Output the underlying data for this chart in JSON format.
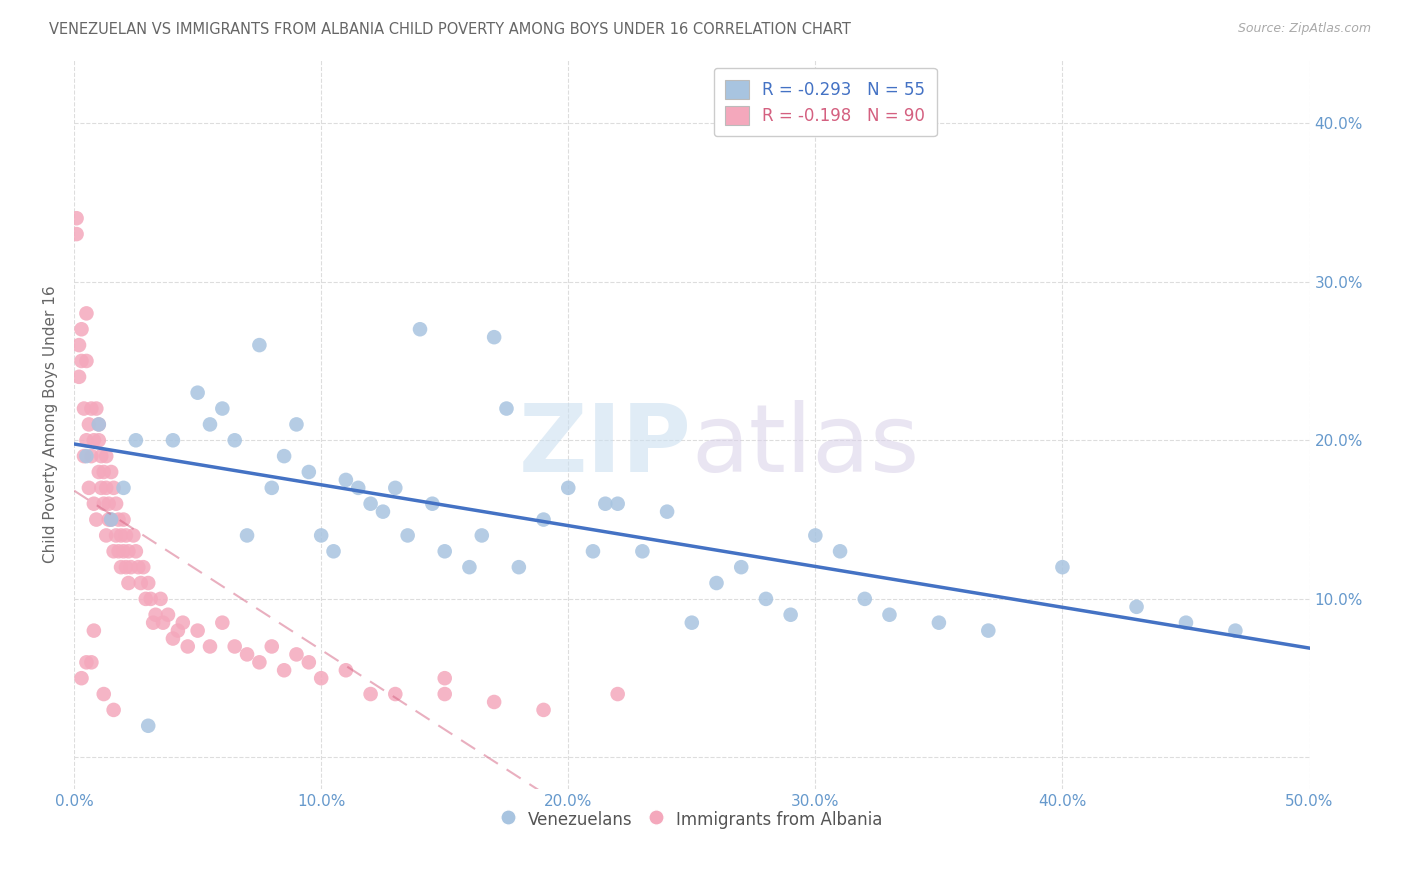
{
  "title": "VENEZUELAN VS IMMIGRANTS FROM ALBANIA CHILD POVERTY AMONG BOYS UNDER 16 CORRELATION CHART",
  "source": "Source: ZipAtlas.com",
  "ylabel": "Child Poverty Among Boys Under 16",
  "xlim": [
    0,
    0.5
  ],
  "ylim": [
    -0.02,
    0.44
  ],
  "xticks": [
    0.0,
    0.1,
    0.2,
    0.3,
    0.4,
    0.5
  ],
  "xticklabels": [
    "0.0%",
    "10.0%",
    "20.0%",
    "30.0%",
    "40.0%",
    "50.0%"
  ],
  "yticks": [
    0.0,
    0.1,
    0.2,
    0.3,
    0.4
  ],
  "yticklabels_left": [
    "",
    "",
    "",
    "",
    ""
  ],
  "yticklabels_right": [
    "",
    "10.0%",
    "20.0%",
    "30.0%",
    "40.0%"
  ],
  "legend_blue_r": "R = -0.293",
  "legend_blue_n": "N = 55",
  "legend_pink_r": "R = -0.198",
  "legend_pink_n": "N = 90",
  "series_blue": {
    "label": "Venezuelans",
    "color": "#a8c4e0",
    "line_color": "#4472c4",
    "x": [
      0.005,
      0.01,
      0.015,
      0.02,
      0.025,
      0.03,
      0.04,
      0.05,
      0.055,
      0.06,
      0.065,
      0.07,
      0.075,
      0.08,
      0.085,
      0.09,
      0.095,
      0.1,
      0.105,
      0.11,
      0.115,
      0.12,
      0.125,
      0.13,
      0.135,
      0.14,
      0.145,
      0.15,
      0.16,
      0.165,
      0.17,
      0.175,
      0.18,
      0.19,
      0.2,
      0.21,
      0.215,
      0.22,
      0.23,
      0.24,
      0.25,
      0.26,
      0.27,
      0.28,
      0.29,
      0.3,
      0.31,
      0.32,
      0.33,
      0.35,
      0.37,
      0.4,
      0.43,
      0.45,
      0.47
    ],
    "y": [
      0.19,
      0.21,
      0.15,
      0.17,
      0.2,
      0.02,
      0.2,
      0.23,
      0.21,
      0.22,
      0.2,
      0.14,
      0.26,
      0.17,
      0.19,
      0.21,
      0.18,
      0.14,
      0.13,
      0.175,
      0.17,
      0.16,
      0.155,
      0.17,
      0.14,
      0.27,
      0.16,
      0.13,
      0.12,
      0.14,
      0.265,
      0.22,
      0.12,
      0.15,
      0.17,
      0.13,
      0.16,
      0.16,
      0.13,
      0.155,
      0.085,
      0.11,
      0.12,
      0.1,
      0.09,
      0.14,
      0.13,
      0.1,
      0.09,
      0.085,
      0.08,
      0.12,
      0.095,
      0.085,
      0.08
    ]
  },
  "series_pink": {
    "label": "Immigrants from Albania",
    "color": "#f4a8bc",
    "line_color": "#d46080",
    "x": [
      0.001,
      0.001,
      0.002,
      0.002,
      0.003,
      0.003,
      0.004,
      0.004,
      0.005,
      0.005,
      0.005,
      0.006,
      0.006,
      0.007,
      0.007,
      0.008,
      0.008,
      0.009,
      0.009,
      0.01,
      0.01,
      0.01,
      0.011,
      0.011,
      0.012,
      0.012,
      0.013,
      0.013,
      0.013,
      0.014,
      0.014,
      0.015,
      0.015,
      0.016,
      0.016,
      0.017,
      0.017,
      0.018,
      0.018,
      0.019,
      0.019,
      0.02,
      0.02,
      0.021,
      0.021,
      0.022,
      0.022,
      0.023,
      0.024,
      0.025,
      0.026,
      0.027,
      0.028,
      0.029,
      0.03,
      0.031,
      0.032,
      0.033,
      0.035,
      0.036,
      0.038,
      0.04,
      0.042,
      0.044,
      0.046,
      0.05,
      0.055,
      0.06,
      0.065,
      0.07,
      0.075,
      0.08,
      0.085,
      0.09,
      0.095,
      0.1,
      0.11,
      0.12,
      0.13,
      0.15,
      0.17,
      0.19,
      0.22,
      0.15,
      0.005,
      0.008,
      0.012,
      0.016,
      0.003,
      0.007
    ],
    "y": [
      0.33,
      0.34,
      0.26,
      0.24,
      0.27,
      0.25,
      0.19,
      0.22,
      0.28,
      0.25,
      0.2,
      0.21,
      0.17,
      0.22,
      0.19,
      0.2,
      0.16,
      0.22,
      0.15,
      0.21,
      0.18,
      0.2,
      0.19,
      0.17,
      0.18,
      0.16,
      0.17,
      0.14,
      0.19,
      0.15,
      0.16,
      0.18,
      0.15,
      0.17,
      0.13,
      0.14,
      0.16,
      0.15,
      0.13,
      0.14,
      0.12,
      0.15,
      0.13,
      0.14,
      0.12,
      0.13,
      0.11,
      0.12,
      0.14,
      0.13,
      0.12,
      0.11,
      0.12,
      0.1,
      0.11,
      0.1,
      0.085,
      0.09,
      0.1,
      0.085,
      0.09,
      0.075,
      0.08,
      0.085,
      0.07,
      0.08,
      0.07,
      0.085,
      0.07,
      0.065,
      0.06,
      0.07,
      0.055,
      0.065,
      0.06,
      0.05,
      0.055,
      0.04,
      0.04,
      0.04,
      0.035,
      0.03,
      0.04,
      0.05,
      0.06,
      0.08,
      0.04,
      0.03,
      0.05,
      0.06
    ]
  },
  "background_color": "#ffffff",
  "grid_color": "#dddddd",
  "title_color": "#666666",
  "axis_color": "#6699cc"
}
